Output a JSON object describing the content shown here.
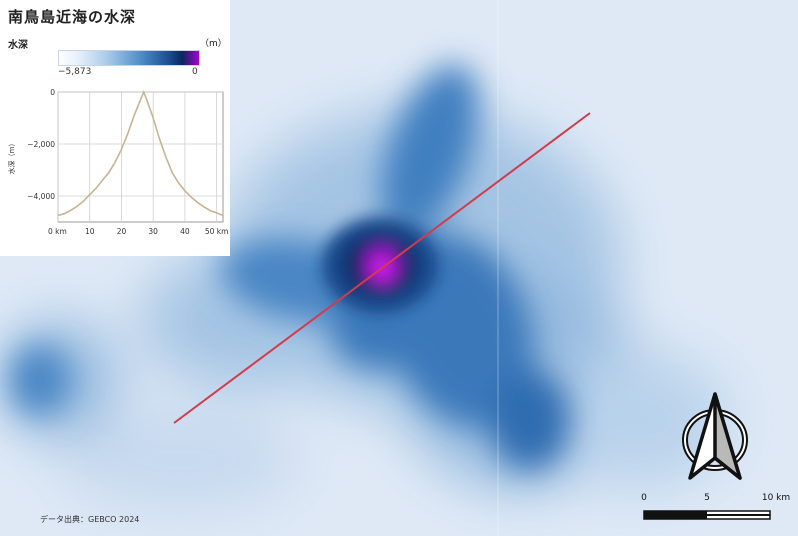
{
  "title": "南鳥島近海の水深",
  "legend": {
    "title": "水深",
    "unit": "（m）",
    "min_label": "−5,873",
    "max_label": "0"
  },
  "profile": {
    "ylabel": "水深（m）",
    "yticks": [
      "0",
      "−2,000",
      "−4,000"
    ],
    "xticks": [
      "0 km",
      "10",
      "20",
      "30",
      "40",
      "50 km"
    ],
    "x_km": [
      0,
      2,
      4,
      6,
      8,
      10,
      12,
      14,
      16,
      18,
      20,
      22,
      24,
      26,
      27,
      28,
      30,
      32,
      34,
      36,
      38,
      40,
      42,
      44,
      46,
      48,
      50,
      52
    ],
    "depth_m": [
      -4750,
      -4680,
      -4550,
      -4400,
      -4200,
      -3950,
      -3700,
      -3400,
      -3100,
      -2700,
      -2200,
      -1600,
      -900,
      -300,
      0,
      -300,
      -1000,
      -1800,
      -2500,
      -3100,
      -3500,
      -3800,
      -4050,
      -4250,
      -4420,
      -4560,
      -4650,
      -4750
    ],
    "xlim": [
      0,
      52
    ],
    "ylim": [
      -5000,
      0
    ]
  },
  "scale_bar": {
    "labels": [
      "0",
      "5",
      "10 km"
    ]
  },
  "source": "データ出典：GEBCO 2024",
  "colors": {
    "profile_line": "#c8b493",
    "transect_line": "#d63a4a",
    "deep_blue": "#0a2760",
    "peak_magenta": "#c010e0"
  }
}
